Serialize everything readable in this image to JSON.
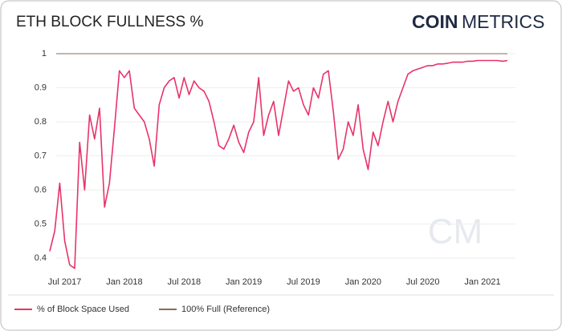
{
  "chart_data": {
    "type": "line",
    "title": "ETH BLOCK FULLNESS %",
    "logo": {
      "bold": "COIN",
      "light": "METRICS"
    },
    "watermark": "CM",
    "categories": [
      null,
      null,
      null,
      "Jul 2017",
      null,
      null,
      null,
      null,
      null,
      null,
      null,
      null,
      null,
      null,
      null,
      "Jan 2018",
      null,
      null,
      null,
      null,
      null,
      null,
      null,
      null,
      null,
      null,
      null,
      "Jul 2018",
      null,
      null,
      null,
      null,
      null,
      null,
      null,
      null,
      null,
      null,
      null,
      "Jan 2019",
      null,
      null,
      null,
      null,
      null,
      null,
      null,
      null,
      null,
      null,
      null,
      "Jul 2019",
      null,
      null,
      null,
      null,
      null,
      null,
      null,
      null,
      null,
      null,
      null,
      "Jan 2020",
      null,
      null,
      null,
      null,
      null,
      null,
      null,
      null,
      null,
      null,
      null,
      "Jul 2020",
      null,
      null,
      null,
      null,
      null,
      null,
      null,
      null,
      null,
      null,
      null,
      "Jan 2021",
      null,
      null,
      null,
      null,
      null
    ],
    "series": [
      {
        "name": "% of Block Space Used",
        "color": "#e8336a",
        "values": [
          0.42,
          0.48,
          0.62,
          0.45,
          0.38,
          0.37,
          0.74,
          0.6,
          0.82,
          0.75,
          0.84,
          0.55,
          0.62,
          0.78,
          0.95,
          0.93,
          0.95,
          0.84,
          0.82,
          0.8,
          0.75,
          0.67,
          0.85,
          0.9,
          0.92,
          0.93,
          0.87,
          0.93,
          0.88,
          0.92,
          0.9,
          0.89,
          0.86,
          0.8,
          0.73,
          0.72,
          0.75,
          0.79,
          0.74,
          0.71,
          0.77,
          0.8,
          0.93,
          0.76,
          0.82,
          0.86,
          0.76,
          0.84,
          0.92,
          0.89,
          0.9,
          0.85,
          0.82,
          0.9,
          0.87,
          0.94,
          0.95,
          0.83,
          0.69,
          0.72,
          0.8,
          0.76,
          0.85,
          0.72,
          0.66,
          0.77,
          0.73,
          0.8,
          0.86,
          0.8,
          0.86,
          0.9,
          0.94,
          0.95,
          0.955,
          0.96,
          0.965,
          0.965,
          0.97,
          0.97,
          0.972,
          0.975,
          0.975,
          0.975,
          0.978,
          0.978,
          0.98,
          0.98,
          0.98,
          0.98,
          0.98,
          0.978,
          0.98
        ]
      }
    ],
    "reference": {
      "name": "100% Full (Reference)",
      "color": "#8b6a5a",
      "value": 1
    },
    "ylim": [
      0.36,
      1.02
    ],
    "yticks": [
      0.4,
      0.5,
      0.6,
      0.7,
      0.8,
      0.9,
      1
    ],
    "grid": true
  }
}
